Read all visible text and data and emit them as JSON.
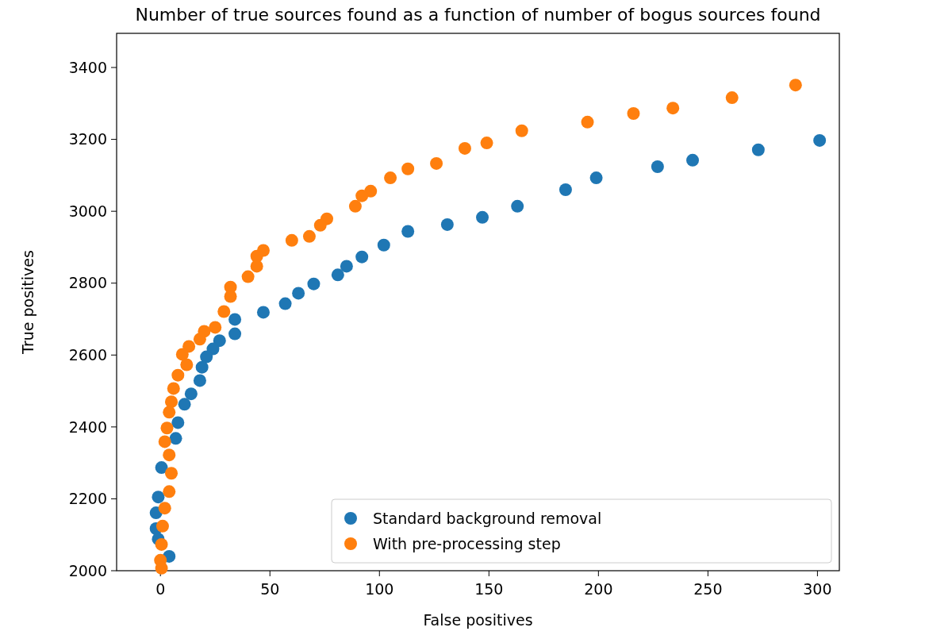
{
  "chart_data": {
    "type": "scatter",
    "title": "Number of true sources found as a function of number of bogus sources found",
    "xlabel": "False positives",
    "ylabel": "True positives",
    "xlim": [
      -20,
      310
    ],
    "ylim": [
      2000,
      3495
    ],
    "xticks": [
      0,
      50,
      100,
      150,
      200,
      250,
      300
    ],
    "yticks": [
      2000,
      2200,
      2400,
      2600,
      2800,
      3000,
      3200,
      3400
    ],
    "marker": "circle",
    "legend": "bottom right",
    "grid": false,
    "series": [
      {
        "name": "Standard background removal",
        "color": "#1f77b4",
        "x": [
          301,
          273,
          243,
          227,
          199,
          185,
          163,
          147,
          131,
          113,
          102,
          92,
          85,
          81,
          70,
          63,
          57,
          47,
          34,
          34,
          27,
          24,
          21,
          19,
          18,
          14,
          11,
          8,
          7,
          0.5,
          -1,
          -2,
          -2,
          -1,
          4
        ],
        "values": [
          3197,
          3171,
          3142,
          3124,
          3093,
          3060,
          3014,
          2983,
          2963,
          2944,
          2906,
          2873,
          2847,
          2823,
          2798,
          2772,
          2743,
          2719,
          2699,
          2659,
          2640,
          2617,
          2595,
          2566,
          2529,
          2492,
          2463,
          2412,
          2368,
          2287,
          2205,
          2161,
          2117,
          2088,
          2040
        ]
      },
      {
        "name": "With pre-processing step",
        "color": "#ff7f0e",
        "x": [
          290,
          261,
          234,
          216,
          195,
          165,
          149,
          139,
          126,
          113,
          105,
          96,
          92,
          89,
          76,
          73,
          68,
          60,
          47,
          44,
          44,
          40,
          32,
          32,
          29,
          25,
          20,
          18,
          13,
          10,
          12,
          8,
          6,
          5,
          4,
          3,
          2,
          4,
          5,
          4,
          2,
          1,
          0.5,
          0,
          0.5
        ],
        "values": [
          3351,
          3316,
          3287,
          3272,
          3248,
          3224,
          3190,
          3175,
          3133,
          3118,
          3093,
          3056,
          3043,
          3014,
          2979,
          2961,
          2930,
          2919,
          2891,
          2875,
          2847,
          2818,
          2789,
          2763,
          2721,
          2677,
          2666,
          2644,
          2624,
          2602,
          2573,
          2544,
          2507,
          2470,
          2441,
          2397,
          2359,
          2322,
          2271,
          2220,
          2174,
          2124,
          2073,
          2029,
          2007
        ]
      }
    ]
  }
}
